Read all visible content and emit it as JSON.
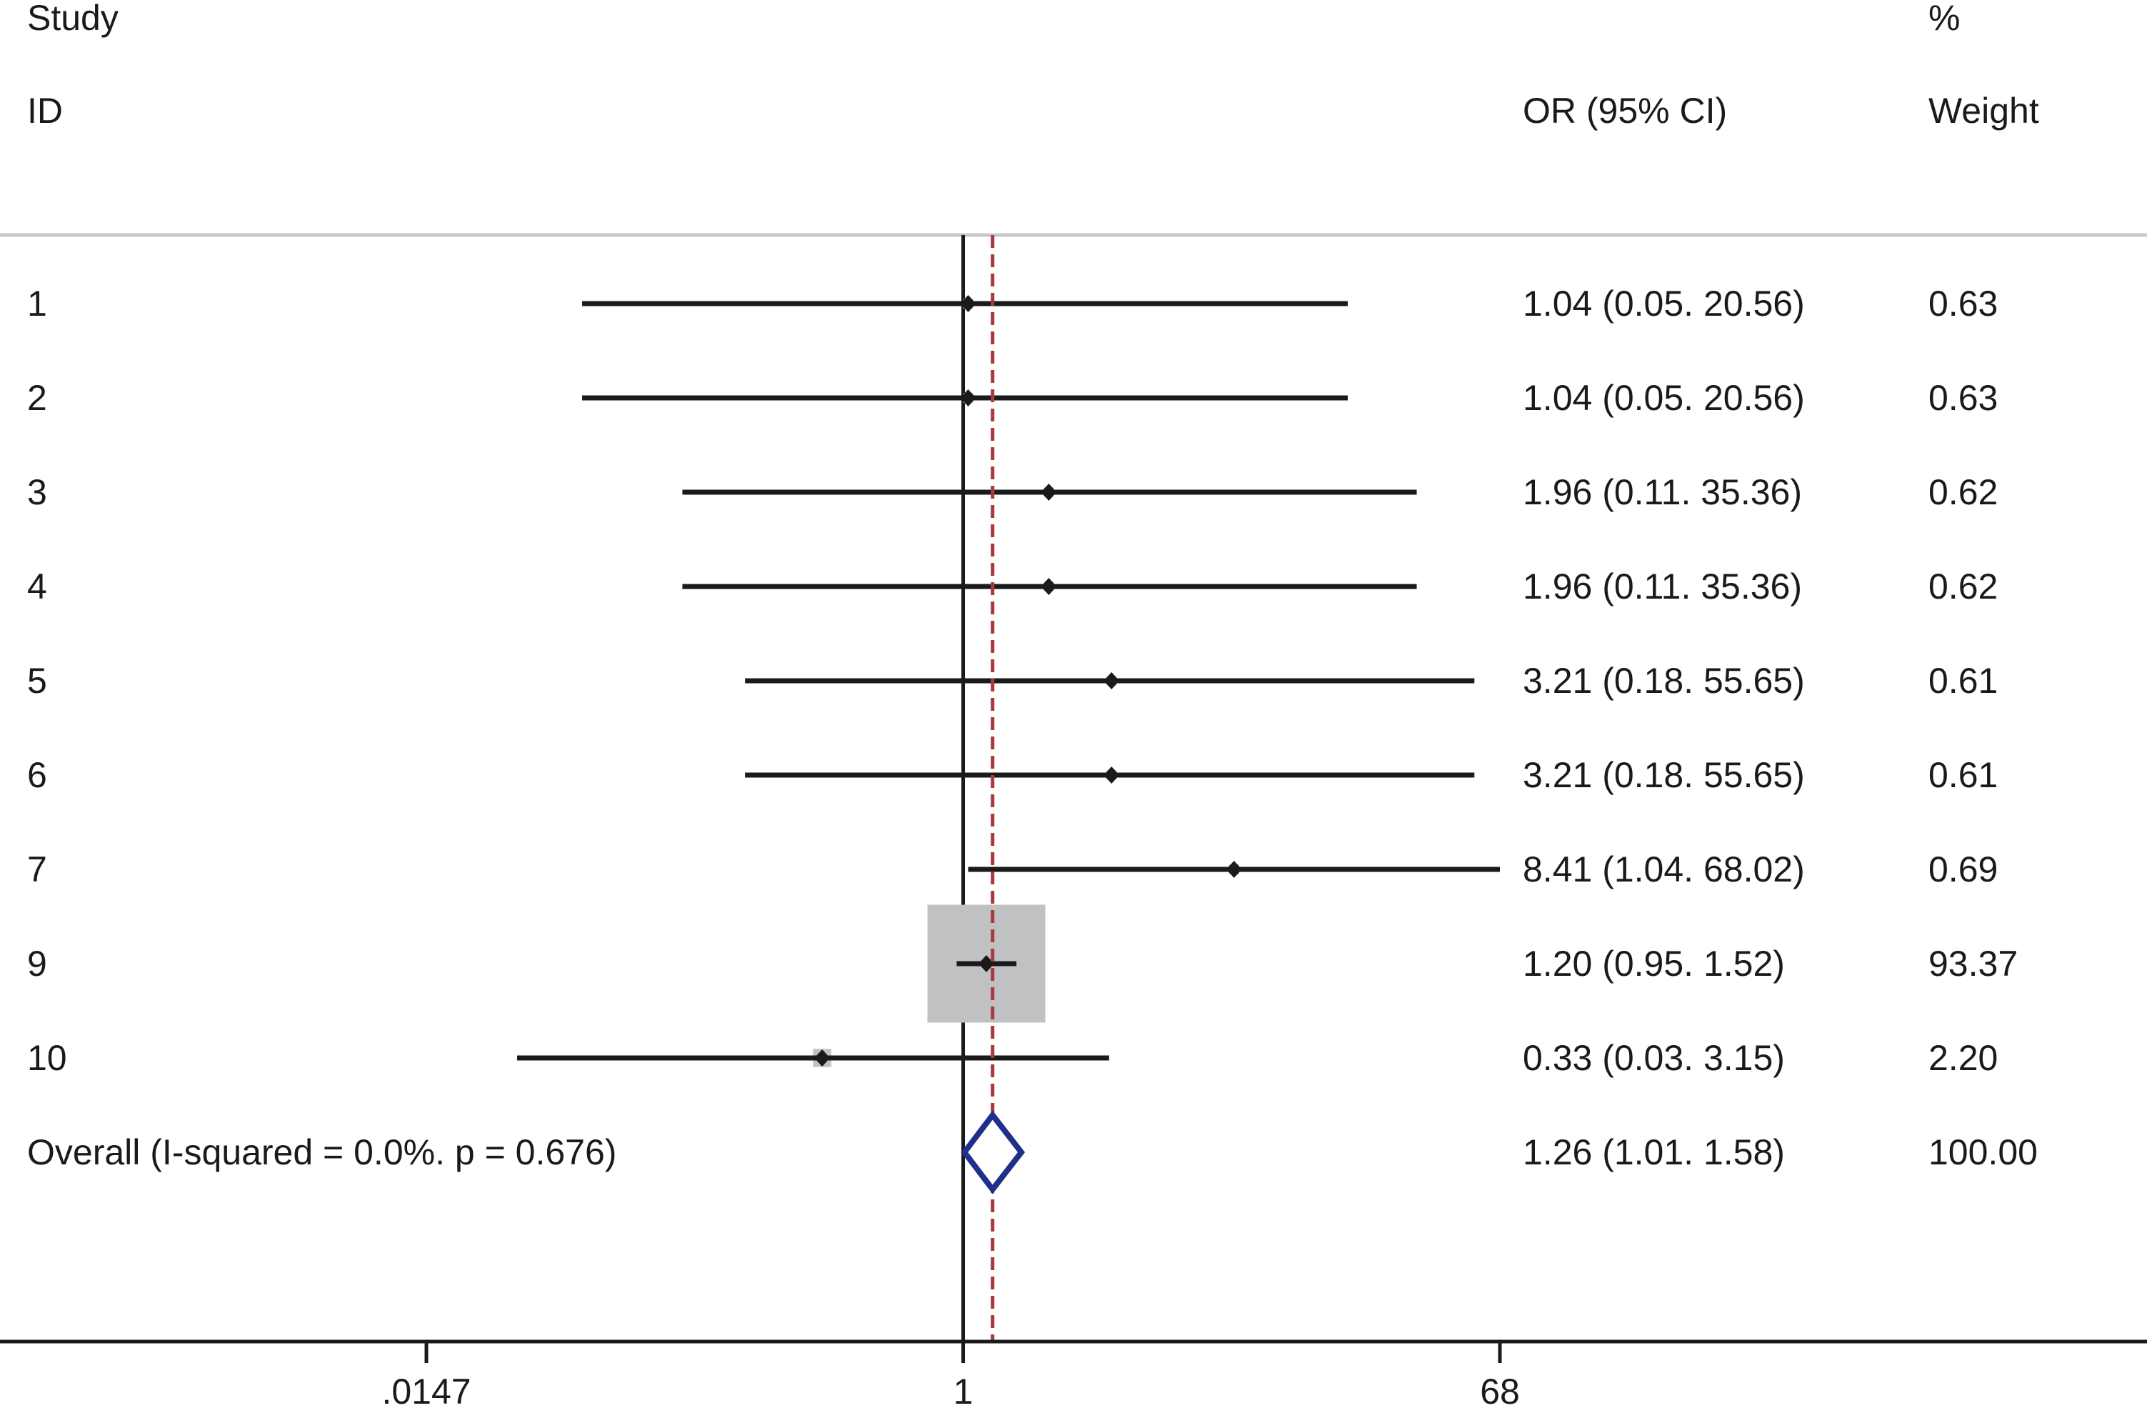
{
  "chart_data": {
    "type": "forest",
    "headers": {
      "study_line1": "Study",
      "study_line2": "ID",
      "or_label": "OR (95% CI)",
      "weight_line1": "%",
      "weight_line2": "Weight"
    },
    "x_scale": "log",
    "xlim": [
      0.0147,
      68
    ],
    "xticks": [
      {
        "value": 0.0147,
        "label": ".0147"
      },
      {
        "value": 1,
        "label": "1"
      },
      {
        "value": 68,
        "label": "68"
      }
    ],
    "null_line": 1,
    "pooled_line": 1.26,
    "studies": [
      {
        "id": "1",
        "or": 1.04,
        "lo": 0.05,
        "hi": 20.56,
        "or_text": "1.04 (0.05. 20.56)",
        "weight": 0.63,
        "weight_text": "0.63"
      },
      {
        "id": "2",
        "or": 1.04,
        "lo": 0.05,
        "hi": 20.56,
        "or_text": "1.04 (0.05. 20.56)",
        "weight": 0.63,
        "weight_text": "0.63"
      },
      {
        "id": "3",
        "or": 1.96,
        "lo": 0.11,
        "hi": 35.36,
        "or_text": "1.96 (0.11. 35.36)",
        "weight": 0.62,
        "weight_text": "0.62"
      },
      {
        "id": "4",
        "or": 1.96,
        "lo": 0.11,
        "hi": 35.36,
        "or_text": "1.96 (0.11. 35.36)",
        "weight": 0.62,
        "weight_text": "0.62"
      },
      {
        "id": "5",
        "or": 3.21,
        "lo": 0.18,
        "hi": 55.65,
        "or_text": "3.21 (0.18. 55.65)",
        "weight": 0.61,
        "weight_text": "0.61"
      },
      {
        "id": "6",
        "or": 3.21,
        "lo": 0.18,
        "hi": 55.65,
        "or_text": "3.21 (0.18. 55.65)",
        "weight": 0.61,
        "weight_text": "0.61"
      },
      {
        "id": "7",
        "or": 8.41,
        "lo": 1.04,
        "hi": 68.02,
        "or_text": "8.41 (1.04. 68.02)",
        "weight": 0.69,
        "weight_text": "0.69"
      },
      {
        "id": "9",
        "or": 1.2,
        "lo": 0.95,
        "hi": 1.52,
        "or_text": "1.20 (0.95. 1.52)",
        "weight": 93.37,
        "weight_text": "93.37"
      },
      {
        "id": "10",
        "or": 0.33,
        "lo": 0.03,
        "hi": 3.15,
        "or_text": "0.33 (0.03. 3.15)",
        "weight": 2.2,
        "weight_text": "2.20"
      }
    ],
    "overall": {
      "label": "Overall  (I-squared = 0.0%. p = 0.676)",
      "or": 1.26,
      "lo": 1.01,
      "hi": 1.58,
      "or_text": "1.26 (1.01. 1.58)",
      "weight_text": "100.00"
    },
    "colors": {
      "ci_line": "#1a1a1a",
      "weight_box": "#c0c1c3",
      "pooled_line": "#a83a3a",
      "diamond": "#1f2f8a",
      "separator": "#c8c8c8"
    }
  }
}
